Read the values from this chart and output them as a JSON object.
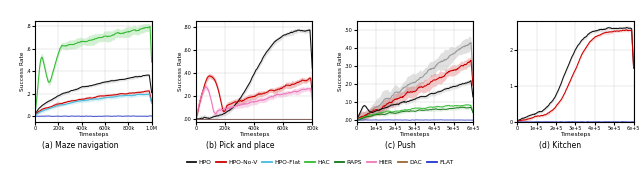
{
  "fig_width": 6.4,
  "fig_height": 1.74,
  "dpi": 100,
  "subplot_titles": [
    "(a) Maze navigation",
    "(b) Pick and place",
    "(c) Push",
    "(d) Kitchen"
  ],
  "legend_entries": [
    {
      "label": "HPO",
      "color": "#111111"
    },
    {
      "label": "HPO-No-V",
      "color": "#cc0000"
    },
    {
      "label": "HPO-Flat",
      "color": "#44bbdd"
    },
    {
      "label": "HAC",
      "color": "#33bb33"
    },
    {
      "label": "RAPS",
      "color": "#117711"
    },
    {
      "label": "HIER",
      "color": "#ee77bb"
    },
    {
      "label": "DAC",
      "color": "#996633"
    },
    {
      "label": "FLAT",
      "color": "#2233cc"
    }
  ],
  "colors": {
    "HPO": "#111111",
    "HPO-No-V": "#cc0000",
    "HPO-Flat": "#44bbdd",
    "HAC": "#33bb33",
    "RAPS": "#117711",
    "HIER": "#ee77bb",
    "DAC": "#996633",
    "FLAT": "#2233cc",
    "GRAY": "#999999"
  },
  "maze": {
    "xlim": [
      0,
      1000000
    ],
    "ylim": [
      -0.05,
      0.85
    ],
    "yticks": [
      0.0,
      0.2,
      0.4,
      0.6,
      0.8
    ],
    "ytick_labels": [
      ".0",
      ".2",
      ".4",
      ".6",
      ".8"
    ],
    "xticks": [
      0,
      200000,
      400000,
      600000,
      800000,
      1000000
    ],
    "xtick_labels": [
      "0",
      "200k",
      "400k",
      "600k",
      "800k",
      "1.0M"
    ]
  },
  "pick": {
    "xlim": [
      0,
      800000
    ],
    "ylim": [
      -0.02,
      0.85
    ],
    "yticks": [
      0.0,
      0.2,
      0.4,
      0.6,
      0.8
    ],
    "ytick_labels": [
      ".00",
      ".20",
      ".40",
      ".60",
      ".80"
    ],
    "xticks": [
      0,
      200000,
      400000,
      600000,
      800000
    ],
    "xtick_labels": [
      "0",
      "200k",
      "400k",
      "600k",
      "800k"
    ]
  },
  "push": {
    "xlim": [
      0,
      600000
    ],
    "ylim": [
      -0.01,
      0.55
    ],
    "yticks": [
      0.0,
      0.1,
      0.2,
      0.3,
      0.4,
      0.5
    ],
    "ytick_labels": [
      ".00",
      ".10",
      ".20",
      ".30",
      ".40",
      ".50"
    ],
    "xticks": [
      0,
      100000,
      200000,
      300000,
      400000,
      500000,
      600000
    ],
    "xtick_labels": [
      "0",
      "1e+5",
      "2e+5",
      "3e+5",
      "4e+5",
      "5e+5",
      "6e+5"
    ]
  },
  "kitchen": {
    "xlim": [
      0,
      600000
    ],
    "ylim": [
      0.0,
      2.8
    ],
    "yticks": [
      0.0,
      1.0,
      2.0
    ],
    "ytick_labels": [
      "0",
      "1",
      "2"
    ],
    "xticks": [
      0,
      100000,
      200000,
      300000,
      400000,
      500000,
      600000
    ],
    "xtick_labels": [
      "0",
      "1e+5",
      "2e+5",
      "3e+5",
      "4e+5",
      "5e+5",
      "6e+5"
    ]
  },
  "ylabel": "Success Rate",
  "xlabel": "Timesteps"
}
